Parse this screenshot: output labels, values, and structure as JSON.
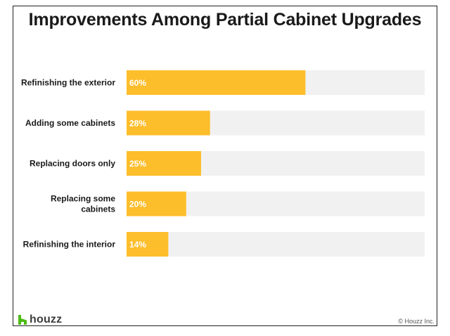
{
  "colors": {
    "bar": "#FDBE2C",
    "track": "#F1F1F1",
    "value_text": "#ffffff",
    "label_text": "#1a1a1a",
    "logo_green": "#4DBC15"
  },
  "footer": {
    "logo_text": "houzz",
    "copyright": "© Houzz Inc."
  },
  "chart_data": {
    "type": "bar",
    "orientation": "horizontal",
    "title": "Improvements Among Partial Cabinet Upgrades",
    "categories": [
      "Refinishing the exterior",
      "Adding some cabinets",
      "Replacing doors only",
      "Replacing some cabinets",
      "Refinishing the interior"
    ],
    "values": [
      60,
      28,
      25,
      20,
      14
    ],
    "value_labels": [
      "60%",
      "28%",
      "25%",
      "20%",
      "14%"
    ],
    "xlim": [
      0,
      100
    ],
    "unit": "%",
    "grid": false
  }
}
